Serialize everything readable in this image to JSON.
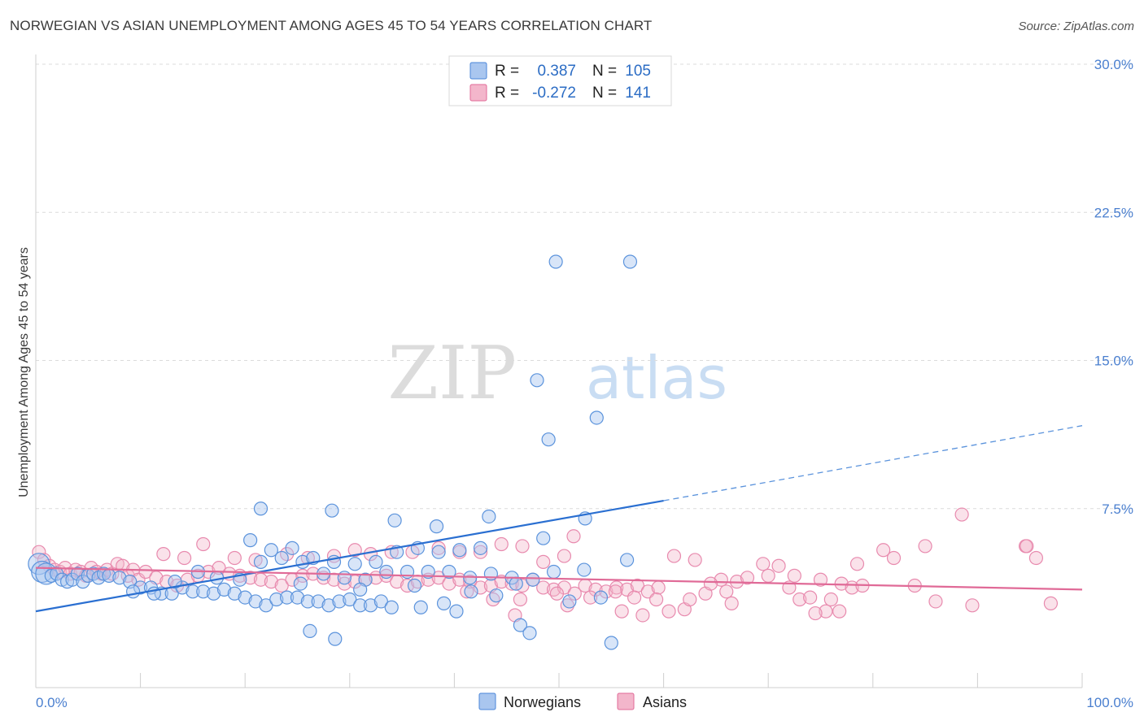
{
  "title": "NORWEGIAN VS ASIAN UNEMPLOYMENT AMONG AGES 45 TO 54 YEARS CORRELATION CHART",
  "source": "Source: ZipAtlas.com",
  "watermark": {
    "zip": "ZIP",
    "atlas": "atlas"
  },
  "colors": {
    "blue": "#4a86d8",
    "blue_fill": "#a9c6ef",
    "pink": "#e06a97",
    "pink_fill": "#f3b6cb",
    "axis_text": "#4a7fcf"
  },
  "legend": {
    "r_label": "R =",
    "n_label": "N =",
    "rows": [
      {
        "r": "0.387",
        "n": "105",
        "color": "#a9c6ef",
        "stroke": "#4a86d8"
      },
      {
        "r": "-0.272",
        "n": "141",
        "color": "#f3b6cb",
        "stroke": "#e06a97"
      }
    ]
  },
  "bottom_legend": [
    {
      "label": "Norwegians"
    },
    {
      "label": "Asians"
    }
  ],
  "chart_data": {
    "type": "scatter",
    "title": "NORWEGIAN VS ASIAN UNEMPLOYMENT AMONG AGES 45 TO 54 YEARS CORRELATION CHART",
    "xlabel": "",
    "ylabel": "Unemployment Among Ages 45 to 54 years",
    "xlim": [
      0,
      100
    ],
    "ylim": [
      0,
      30
    ],
    "x_tick_labels": [
      "0.0%",
      "100.0%"
    ],
    "y_ticks": [
      7.5,
      15.0,
      22.5,
      30.0
    ],
    "y_tick_labels": [
      "7.5%",
      "15.0%",
      "22.5%",
      "30.0%"
    ],
    "series": [
      {
        "name": "Norwegians",
        "r": 0.387,
        "n": 105,
        "trend": {
          "x0": 0,
          "y0": 2.3,
          "x1": 60,
          "y1": 7.9,
          "dashed_to_x": 100,
          "dashed_to_y": 11.7
        },
        "points": [
          [
            0.3,
            4.7
          ],
          [
            0.6,
            4.3
          ],
          [
            1,
            4.2
          ],
          [
            1.5,
            4.1
          ],
          [
            2,
            4.2
          ],
          [
            2.5,
            3.9
          ],
          [
            3,
            3.8
          ],
          [
            3.5,
            3.9
          ],
          [
            4,
            4.2
          ],
          [
            4.5,
            3.8
          ],
          [
            5,
            4.1
          ],
          [
            5.5,
            4.2
          ],
          [
            6,
            4.0
          ],
          [
            6.5,
            4.2
          ],
          [
            7,
            4.1
          ],
          [
            8,
            4.0
          ],
          [
            9,
            3.8
          ],
          [
            10,
            3.5
          ],
          [
            11,
            3.5
          ],
          [
            12,
            3.2
          ],
          [
            13,
            3.2
          ],
          [
            14,
            3.5
          ],
          [
            15,
            3.3
          ],
          [
            16,
            3.3
          ],
          [
            17,
            3.2
          ],
          [
            18,
            3.4
          ],
          [
            19,
            3.2
          ],
          [
            20,
            3.0
          ],
          [
            21,
            2.8
          ],
          [
            22,
            2.6
          ],
          [
            23,
            2.9
          ],
          [
            24,
            3.0
          ],
          [
            25,
            3.0
          ],
          [
            26,
            2.8
          ],
          [
            27,
            2.8
          ],
          [
            28,
            2.6
          ],
          [
            29,
            2.8
          ],
          [
            30,
            2.9
          ],
          [
            31,
            2.6
          ],
          [
            32,
            2.6
          ],
          [
            33,
            2.8
          ],
          [
            34,
            2.5
          ],
          [
            9.3,
            3.3
          ],
          [
            11.3,
            3.2
          ],
          [
            13.3,
            3.8
          ],
          [
            15.5,
            4.3
          ],
          [
            17.3,
            4.0
          ],
          [
            19.5,
            3.9
          ],
          [
            21.5,
            4.8
          ],
          [
            23.5,
            5.0
          ],
          [
            25.5,
            4.8
          ],
          [
            27.5,
            4.2
          ],
          [
            29.5,
            4.0
          ],
          [
            31.5,
            3.9
          ],
          [
            33.5,
            4.3
          ],
          [
            35.5,
            4.3
          ],
          [
            37.5,
            4.3
          ],
          [
            39.5,
            4.3
          ],
          [
            41.5,
            4.0
          ],
          [
            43.5,
            4.2
          ],
          [
            45.5,
            4.0
          ],
          [
            47.5,
            3.9
          ],
          [
            49.5,
            4.3
          ],
          [
            20.5,
            5.9
          ],
          [
            22.5,
            5.4
          ],
          [
            24.5,
            5.5
          ],
          [
            26.5,
            5.0
          ],
          [
            28.5,
            4.8
          ],
          [
            30.5,
            4.7
          ],
          [
            32.5,
            4.8
          ],
          [
            34.5,
            5.3
          ],
          [
            36.5,
            5.5
          ],
          [
            38.5,
            5.3
          ],
          [
            40.5,
            5.4
          ],
          [
            42.5,
            5.5
          ],
          [
            21.5,
            7.5
          ],
          [
            28.3,
            7.4
          ],
          [
            34.3,
            6.9
          ],
          [
            38.3,
            6.6
          ],
          [
            43.3,
            7.1
          ],
          [
            52.5,
            7.0
          ],
          [
            48.5,
            6.0
          ],
          [
            56.5,
            4.9
          ],
          [
            26.2,
            1.3
          ],
          [
            28.6,
            0.9
          ],
          [
            36.8,
            2.5
          ],
          [
            40.2,
            2.3
          ],
          [
            46.3,
            1.6
          ],
          [
            47.2,
            1.2
          ],
          [
            55,
            0.7
          ],
          [
            49.7,
            20.0
          ],
          [
            56.8,
            20.0
          ],
          [
            47.9,
            14.0
          ],
          [
            49.0,
            11.0
          ],
          [
            53.6,
            12.1
          ],
          [
            39,
            2.7
          ],
          [
            44,
            3.1
          ],
          [
            51,
            2.8
          ],
          [
            54,
            3.0
          ],
          [
            31,
            3.4
          ],
          [
            25.3,
            3.7
          ],
          [
            36.2,
            3.6
          ],
          [
            41.6,
            3.3
          ],
          [
            45.9,
            3.7
          ],
          [
            52.4,
            4.4
          ]
        ]
      },
      {
        "name": "Asians",
        "r": -0.272,
        "n": 141,
        "trend": {
          "x0": 0,
          "y0": 4.5,
          "x1": 100,
          "y1": 3.4
        },
        "points": [
          [
            0.3,
            5.3
          ],
          [
            0.8,
            4.9
          ],
          [
            1.3,
            4.6
          ],
          [
            1.8,
            4.4
          ],
          [
            2.3,
            4.3
          ],
          [
            2.8,
            4.5
          ],
          [
            3.3,
            4.2
          ],
          [
            3.8,
            4.4
          ],
          [
            4.3,
            4.3
          ],
          [
            4.8,
            4.1
          ],
          [
            5.3,
            4.5
          ],
          [
            5.8,
            4.3
          ],
          [
            6.3,
            4.2
          ],
          [
            6.8,
            4.4
          ],
          [
            7.3,
            4.2
          ],
          [
            7.8,
            4.7
          ],
          [
            8.3,
            4.6
          ],
          [
            8.8,
            4.1
          ],
          [
            9.3,
            4.4
          ],
          [
            9.8,
            3.9
          ],
          [
            10.5,
            4.3
          ],
          [
            11.5,
            4.0
          ],
          [
            12.5,
            3.8
          ],
          [
            13.5,
            3.6
          ],
          [
            14.5,
            3.9
          ],
          [
            15.5,
            4.1
          ],
          [
            16.5,
            4.3
          ],
          [
            17.5,
            4.5
          ],
          [
            18.5,
            4.2
          ],
          [
            19.5,
            4.1
          ],
          [
            20.5,
            4.0
          ],
          [
            21.5,
            3.9
          ],
          [
            22.5,
            3.8
          ],
          [
            23.5,
            3.6
          ],
          [
            24.5,
            3.9
          ],
          [
            25.5,
            4.1
          ],
          [
            26.5,
            4.2
          ],
          [
            27.5,
            4.0
          ],
          [
            28.5,
            3.9
          ],
          [
            29.5,
            3.7
          ],
          [
            30.5,
            3.8
          ],
          [
            31.5,
            3.9
          ],
          [
            32.5,
            4.0
          ],
          [
            33.5,
            4.1
          ],
          [
            34.5,
            3.8
          ],
          [
            35.5,
            3.6
          ],
          [
            36.5,
            3.8
          ],
          [
            37.5,
            3.9
          ],
          [
            38.5,
            4.0
          ],
          [
            39.5,
            3.7
          ],
          [
            40.5,
            3.9
          ],
          [
            41.5,
            3.8
          ],
          [
            42.5,
            3.5
          ],
          [
            43.5,
            3.6
          ],
          [
            44.5,
            3.8
          ],
          [
            45.5,
            3.7
          ],
          [
            46.5,
            3.6
          ],
          [
            47.5,
            3.9
          ],
          [
            48.5,
            3.5
          ],
          [
            49.5,
            3.4
          ],
          [
            50.5,
            3.5
          ],
          [
            51.5,
            3.2
          ],
          [
            52.5,
            3.6
          ],
          [
            53.5,
            3.4
          ],
          [
            54.5,
            3.3
          ],
          [
            55.5,
            3.5
          ],
          [
            56.5,
            3.4
          ],
          [
            57.5,
            3.6
          ],
          [
            58.5,
            3.3
          ],
          [
            59.5,
            3.5
          ],
          [
            12.2,
            5.2
          ],
          [
            14.2,
            5.0
          ],
          [
            16.0,
            5.7
          ],
          [
            19.0,
            5.0
          ],
          [
            21.0,
            4.9
          ],
          [
            24.0,
            5.2
          ],
          [
            26.0,
            5.0
          ],
          [
            28.5,
            5.1
          ],
          [
            30.5,
            5.4
          ],
          [
            32.0,
            5.2
          ],
          [
            34.0,
            5.3
          ],
          [
            36.0,
            5.3
          ],
          [
            38.5,
            5.5
          ],
          [
            40.5,
            5.3
          ],
          [
            42.5,
            5.3
          ],
          [
            44.5,
            5.7
          ],
          [
            46.5,
            5.6
          ],
          [
            48.5,
            4.8
          ],
          [
            50.5,
            5.1
          ],
          [
            61.0,
            5.1
          ],
          [
            63.0,
            4.9
          ],
          [
            65.5,
            3.9
          ],
          [
            67.0,
            3.8
          ],
          [
            69.5,
            4.7
          ],
          [
            71.0,
            4.6
          ],
          [
            72.5,
            4.1
          ],
          [
            75.0,
            3.9
          ],
          [
            77.0,
            3.7
          ],
          [
            78.0,
            3.5
          ],
          [
            79.0,
            3.6
          ],
          [
            84.0,
            3.6
          ],
          [
            73.0,
            2.9
          ],
          [
            76.0,
            2.9
          ],
          [
            81.0,
            5.4
          ],
          [
            82.0,
            5.0
          ],
          [
            86.0,
            2.8
          ],
          [
            89.5,
            2.6
          ],
          [
            94.6,
            5.6
          ],
          [
            97,
            2.7
          ],
          [
            94.7,
            5.6
          ],
          [
            95.6,
            5.0
          ],
          [
            85.0,
            5.6
          ],
          [
            78.5,
            4.7
          ],
          [
            75.5,
            2.3
          ],
          [
            74.5,
            2.2
          ],
          [
            49.8,
            3.2
          ],
          [
            46.3,
            2.9
          ],
          [
            51.4,
            6.1
          ],
          [
            43.7,
            2.9
          ],
          [
            56.0,
            2.3
          ],
          [
            58.0,
            2.1
          ],
          [
            62.0,
            2.4
          ],
          [
            64.0,
            3.2
          ],
          [
            66.0,
            3.3
          ],
          [
            68.0,
            4.0
          ],
          [
            70.0,
            4.1
          ],
          [
            72.0,
            3.5
          ],
          [
            74.0,
            3.0
          ],
          [
            76.8,
            2.3
          ],
          [
            50.8,
            2.6
          ],
          [
            41.2,
            3.3
          ],
          [
            45.8,
            2.1
          ],
          [
            57.2,
            3.0
          ],
          [
            59.3,
            2.9
          ],
          [
            60.5,
            2.3
          ],
          [
            62.5,
            2.9
          ],
          [
            55.4,
            3.3
          ],
          [
            53.0,
            3.0
          ],
          [
            64.5,
            3.7
          ],
          [
            66.5,
            2.7
          ],
          [
            88.5,
            7.2
          ]
        ]
      }
    ]
  }
}
